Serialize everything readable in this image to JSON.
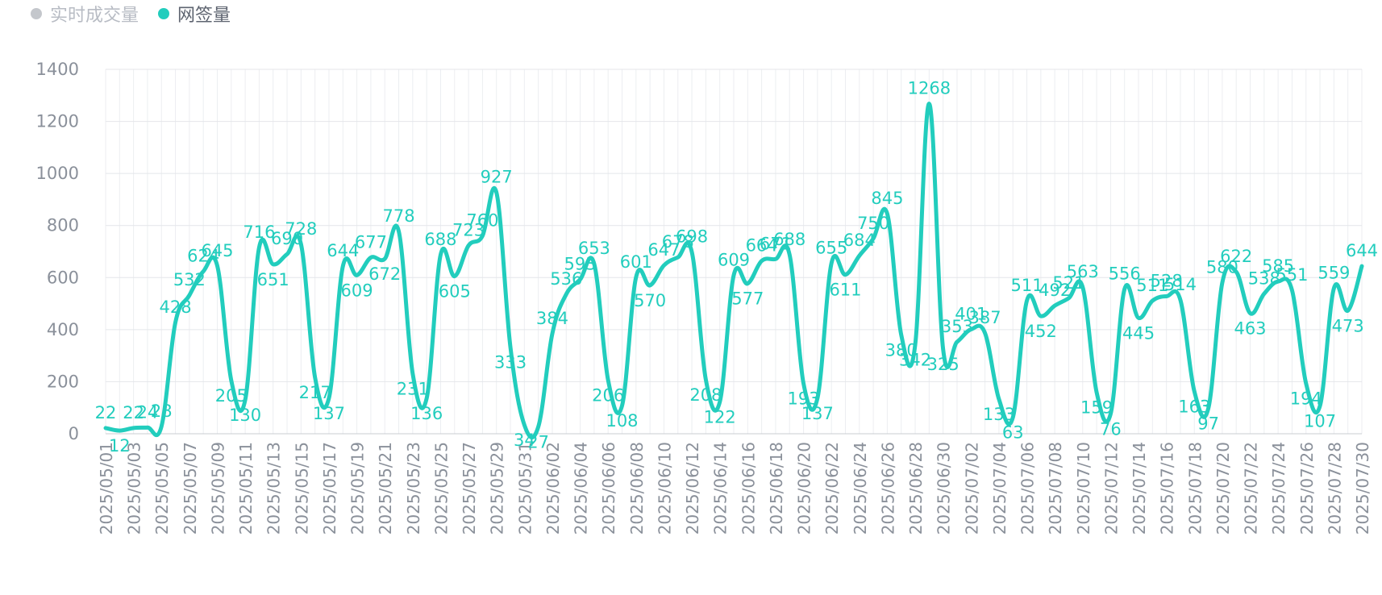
{
  "legend": {
    "items": [
      {
        "label": "实时成交量",
        "color": "#c4c7cc",
        "active": false
      },
      {
        "label": "网签量",
        "color": "#22cdbd",
        "active": true
      }
    ]
  },
  "chart_data": {
    "type": "line",
    "title": "",
    "xlabel": "",
    "ylabel": "",
    "ylim": [
      0,
      1400
    ],
    "yticks": [
      0,
      200,
      400,
      600,
      800,
      1000,
      1200,
      1400
    ],
    "grid": true,
    "legend_position": "top-left",
    "x": [
      "2025/05/01",
      "2025/05/02",
      "2025/05/03",
      "2025/05/04",
      "2025/05/05",
      "2025/05/06",
      "2025/05/07",
      "2025/05/08",
      "2025/05/09",
      "2025/05/10",
      "2025/05/11",
      "2025/05/12",
      "2025/05/13",
      "2025/05/14",
      "2025/05/15",
      "2025/05/16",
      "2025/05/17",
      "2025/05/18",
      "2025/05/19",
      "2025/05/20",
      "2025/05/21",
      "2025/05/22",
      "2025/05/23",
      "2025/05/24",
      "2025/05/25",
      "2025/05/26",
      "2025/05/27",
      "2025/05/28",
      "2025/05/29",
      "2025/05/30",
      "2025/05/31",
      "2025/06/01",
      "2025/06/02",
      "2025/06/03",
      "2025/06/04",
      "2025/06/05",
      "2025/06/06",
      "2025/06/07",
      "2025/06/08",
      "2025/06/09",
      "2025/06/10",
      "2025/06/11",
      "2025/06/12",
      "2025/06/13",
      "2025/06/14",
      "2025/06/15",
      "2025/06/16",
      "2025/06/17",
      "2025/06/18",
      "2025/06/19",
      "2025/06/20",
      "2025/06/21",
      "2025/06/22",
      "2025/06/23",
      "2025/06/24",
      "2025/06/25",
      "2025/06/26",
      "2025/06/27",
      "2025/06/28",
      "2025/06/29",
      "2025/06/30",
      "2025/07/01",
      "2025/07/02",
      "2025/07/03",
      "2025/07/04",
      "2025/07/05",
      "2025/07/06",
      "2025/07/07",
      "2025/07/08",
      "2025/07/09",
      "2025/07/10",
      "2025/07/11",
      "2025/07/12",
      "2025/07/13",
      "2025/07/14",
      "2025/07/15",
      "2025/07/16",
      "2025/07/17",
      "2025/07/18",
      "2025/07/19",
      "2025/07/20",
      "2025/07/21",
      "2025/07/22",
      "2025/07/23",
      "2025/07/24",
      "2025/07/25",
      "2025/07/26",
      "2025/07/27",
      "2025/07/28",
      "2025/07/29",
      "2025/07/30"
    ],
    "xtick_labels": [
      "2025/05/01",
      "2025/05/03",
      "2025/05/05",
      "2025/05/07",
      "2025/05/09",
      "2025/05/11",
      "2025/05/13",
      "2025/05/15",
      "2025/05/17",
      "2025/05/19",
      "2025/05/21",
      "2025/05/23",
      "2025/05/25",
      "2025/05/27",
      "2025/05/29",
      "2025/05/31",
      "2025/06/02",
      "2025/06/04",
      "2025/06/06",
      "2025/06/08",
      "2025/06/10",
      "2025/06/12",
      "2025/06/14",
      "2025/06/16",
      "2025/06/18",
      "2025/06/20",
      "2025/06/22",
      "2025/06/24",
      "2025/06/26",
      "2025/06/28",
      "2025/06/30",
      "2025/07/02",
      "2025/07/04",
      "2025/07/06",
      "2025/07/08",
      "2025/07/10",
      "2025/07/12",
      "2025/07/14",
      "2025/07/16",
      "2025/07/18",
      "2025/07/20",
      "2025/07/22",
      "2025/07/24",
      "2025/07/26",
      "2025/07/28",
      "2025/07/30"
    ],
    "series": [
      {
        "name": "网签量",
        "color": "#22cdbd",
        "values": [
          22,
          12,
          22,
          24,
          28,
          428,
          532,
          624,
          645,
          205,
          130,
          716,
          651,
          690,
          728,
          217,
          137,
          644,
          609,
          677,
          672,
          778,
          231,
          136,
          688,
          605,
          723,
          760,
          927,
          333,
          34,
          27,
          384,
          536,
          593,
          653,
          206,
          108,
          601,
          570,
          647,
          678,
          698,
          208,
          122,
          609,
          577,
          664,
          671,
          688,
          193,
          137,
          655,
          611,
          684,
          750,
          845,
          380,
          342,
          1268,
          325,
          353,
          401,
          387,
          133,
          63,
          511,
          452,
          492,
          521,
          563,
          159,
          76,
          556,
          445,
          511,
          528,
          514,
          163,
          97,
          580,
          622,
          463,
          538,
          585,
          551,
          194,
          107,
          559,
          473,
          644
        ]
      }
    ]
  }
}
